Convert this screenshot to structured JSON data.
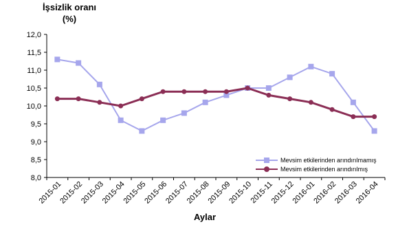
{
  "chart_data": {
    "type": "line",
    "title": "",
    "ylabel_line1": "İşsizlik oranı",
    "ylabel_line2": "(%)",
    "xlabel": "Aylar",
    "ylim": [
      8.0,
      12.0
    ],
    "yticks": [
      "12,0",
      "11,5",
      "11,0",
      "10,5",
      "10,0",
      "9,5",
      "9,0",
      "8,5",
      "8,0"
    ],
    "ytick_values": [
      12.0,
      11.5,
      11.0,
      10.5,
      10.0,
      9.5,
      9.0,
      8.5,
      8.0
    ],
    "categories": [
      "2015-01",
      "2015-02",
      "2015-03",
      "2015-04",
      "2015-05",
      "2015-06",
      "2015-07",
      "2015-08",
      "2015-09",
      "2015-10",
      "2015-11",
      "2015-12",
      "2016-01",
      "2016-02",
      "2016-03",
      "2016-04"
    ],
    "series": [
      {
        "name": "Mevsim etkilerinden arındırılmamış",
        "color": "#a6a6ec",
        "marker": "square",
        "values": [
          11.3,
          11.2,
          10.6,
          9.6,
          9.3,
          9.6,
          9.8,
          10.1,
          10.3,
          10.5,
          10.5,
          10.8,
          11.1,
          10.9,
          10.1,
          9.3
        ]
      },
      {
        "name": "Mevsim etkilerinden arındırılmış",
        "color": "#8b2e55",
        "marker": "circle",
        "values": [
          10.2,
          10.2,
          10.1,
          10.0,
          10.2,
          10.4,
          10.4,
          10.4,
          10.4,
          10.5,
          10.3,
          10.2,
          10.1,
          9.9,
          9.7,
          9.7
        ]
      }
    ],
    "grid": false,
    "legend_position": "bottom-right"
  }
}
